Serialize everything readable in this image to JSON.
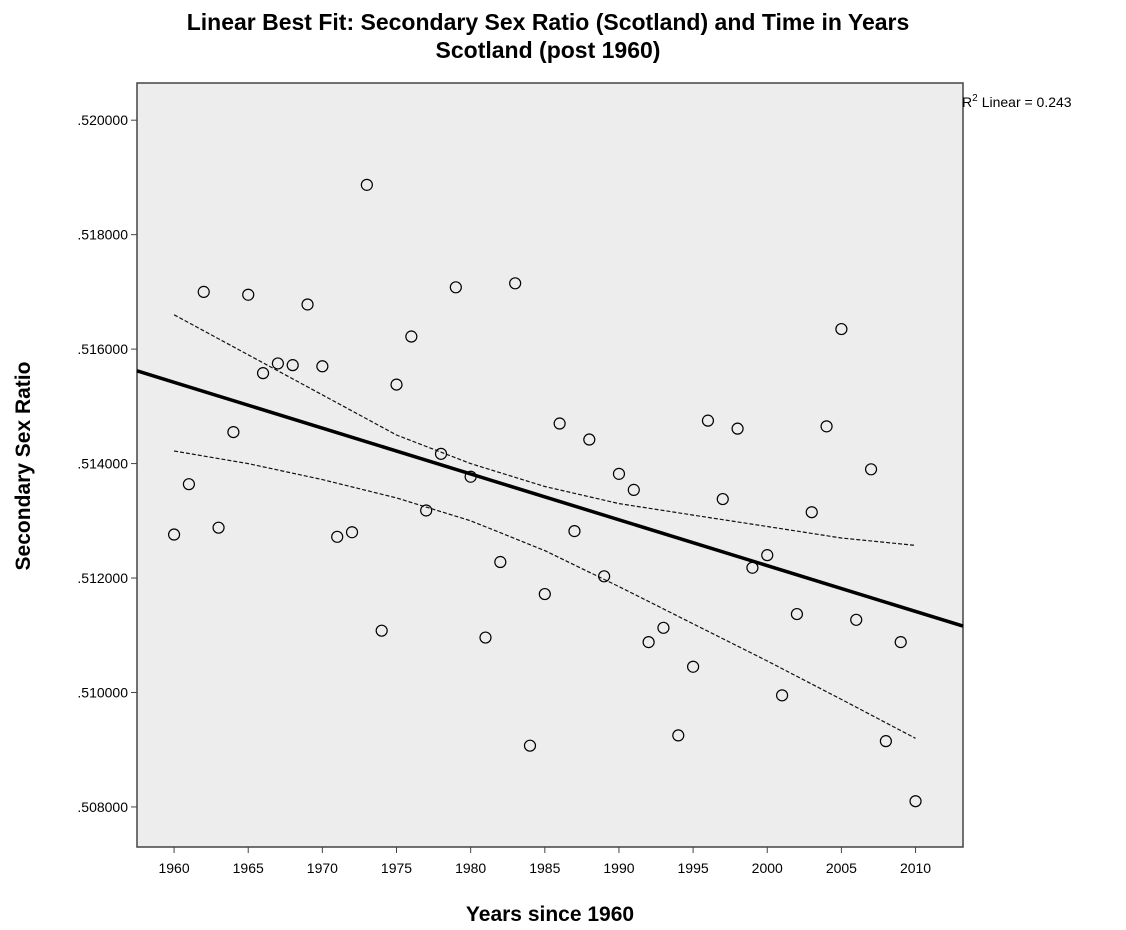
{
  "chart_data": {
    "type": "scatter",
    "title": "Linear Best Fit: Secondary Sex Ratio (Scotland) and Time in Years",
    "subtitle": "Scotland (post 1960)",
    "xlabel": "Years since 1960",
    "ylabel": "Secondary Sex Ratio",
    "xlim": [
      1957.5,
      2013.2
    ],
    "ylim": [
      0.5073,
      0.52065
    ],
    "x_ticks": [
      1960,
      1965,
      1970,
      1975,
      1980,
      1985,
      1990,
      1995,
      2000,
      2005,
      2010
    ],
    "x_tick_labels": [
      "1960",
      "1965",
      "1970",
      "1975",
      "1980",
      "1985",
      "1990",
      "1995",
      "2000",
      "2005",
      "2010"
    ],
    "y_ticks": [
      0.508,
      0.51,
      0.512,
      0.514,
      0.516,
      0.518,
      0.52
    ],
    "y_tick_labels": [
      ".508000",
      ".510000",
      ".512000",
      ".514000",
      ".516000",
      ".518000",
      ".520000"
    ],
    "grid": false,
    "background": "#ededed",
    "r2_label": "Linear = 0.243",
    "r2_symbol": "R",
    "r2_superscript": "2",
    "series": [
      {
        "marker": "open-circle",
        "x": [
          1960,
          1961,
          1962,
          1963,
          1964,
          1965,
          1966,
          1967,
          1968,
          1969,
          1970,
          1971,
          1972,
          1973,
          1974,
          1975,
          1976,
          1977,
          1978,
          1979,
          1980,
          1981,
          1982,
          1983,
          1984,
          1985,
          1986,
          1987,
          1988,
          1989,
          1990,
          1991,
          1992,
          1993,
          1994,
          1995,
          1996,
          1997,
          1998,
          1999,
          2000,
          2001,
          2002,
          2003,
          2004,
          2005,
          2006,
          2007,
          2008,
          2009,
          2010
        ],
        "y": [
          0.51276,
          0.51364,
          0.517,
          0.51288,
          0.51455,
          0.51695,
          0.51558,
          0.51575,
          0.51572,
          0.51678,
          0.5157,
          0.51272,
          0.5128,
          0.51887,
          0.51108,
          0.51538,
          0.51622,
          0.51318,
          0.51417,
          0.51708,
          0.51377,
          0.51096,
          0.51228,
          0.51715,
          0.50907,
          0.51172,
          0.5147,
          0.51282,
          0.51442,
          0.51203,
          0.51382,
          0.51354,
          0.51088,
          0.51113,
          0.50925,
          0.51045,
          0.51475,
          0.51338,
          0.51461,
          0.51218,
          0.5124,
          0.50995,
          0.51137,
          0.51315,
          0.51465,
          0.51635,
          0.51127,
          0.5139,
          0.50915,
          0.51088,
          0.5081
        ]
      }
    ],
    "fit_line": {
      "x": [
        1957.5,
        2013.2
      ],
      "y": [
        0.51562,
        0.51116
      ]
    },
    "ci_upper": {
      "x": [
        1960,
        1965,
        1970,
        1975,
        1980,
        1985,
        1990,
        1995,
        2000,
        2005,
        2010
      ],
      "y": [
        0.5166,
        0.5159,
        0.5152,
        0.5145,
        0.514,
        0.5136,
        0.5133,
        0.5131,
        0.5129,
        0.5127,
        0.51257
      ]
    },
    "ci_lower": {
      "x": [
        1960,
        1965,
        1970,
        1975,
        1980,
        1985,
        1990,
        1995,
        2000,
        2005,
        2010
      ],
      "y": [
        0.51422,
        0.514,
        0.51372,
        0.5134,
        0.513,
        0.51248,
        0.51185,
        0.5112,
        0.51055,
        0.50988,
        0.5092
      ]
    }
  }
}
